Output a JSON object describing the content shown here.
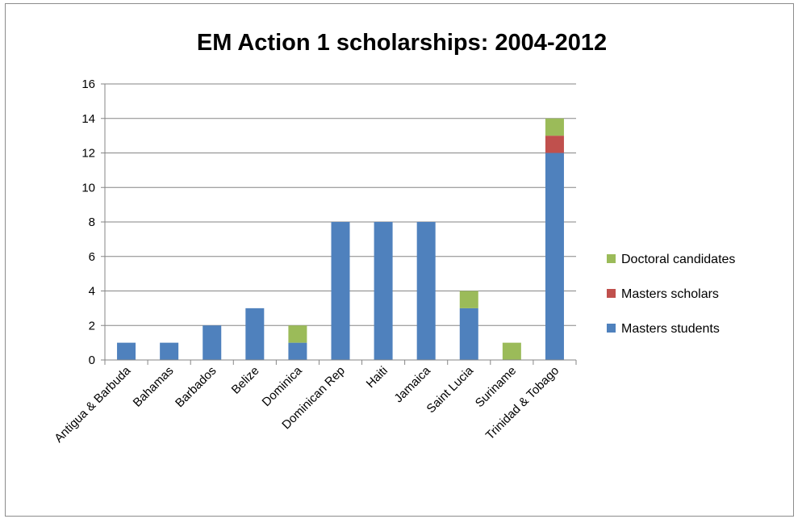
{
  "chart_data": {
    "type": "bar",
    "stacked": true,
    "title": "EM Action 1 scholarships:  2004-2012",
    "xlabel": "",
    "ylabel": "",
    "ylim": [
      0,
      16
    ],
    "yticks": [
      0,
      2,
      4,
      6,
      8,
      10,
      12,
      14,
      16
    ],
    "grid": true,
    "legend_position": "right",
    "categories": [
      "Antigua & Barbuda",
      "Bahamas",
      "Barbados",
      "Belize",
      "Dominica",
      "Dominican Rep",
      "Haiti",
      "Jamaica",
      "Saint Lucia",
      "Suriname",
      "Trinidad & Tobago"
    ],
    "series": [
      {
        "name": "Masters students",
        "color": "#4f81bd",
        "values": [
          1,
          1,
          2,
          3,
          1,
          8,
          8,
          8,
          3,
          0,
          12
        ]
      },
      {
        "name": "Masters scholars",
        "color": "#c0504d",
        "values": [
          0,
          0,
          0,
          0,
          0,
          0,
          0,
          0,
          0,
          0,
          1
        ]
      },
      {
        "name": "Doctoral candidates",
        "color": "#9bbb59",
        "values": [
          0,
          0,
          0,
          0,
          1,
          0,
          0,
          0,
          1,
          1,
          1
        ]
      }
    ],
    "legend_order": [
      "Doctoral candidates",
      "Masters scholars",
      "Masters students"
    ]
  }
}
